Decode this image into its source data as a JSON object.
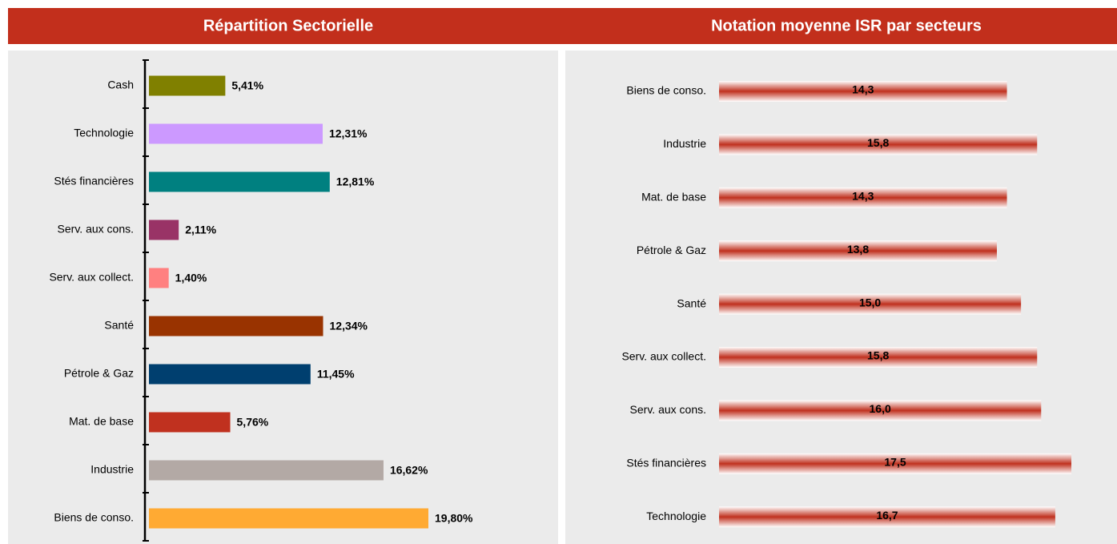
{
  "chart_data": [
    {
      "type": "bar",
      "orientation": "horizontal",
      "title": "Répartition Sectorielle",
      "categories": [
        "Cash",
        "Technologie",
        "Stés financières",
        "Serv. aux cons.",
        "Serv. aux collect.",
        "Santé",
        "Pétrole & Gaz",
        "Mat. de base",
        "Industrie",
        "Biens de conso."
      ],
      "values": [
        5.41,
        12.31,
        12.81,
        2.11,
        1.4,
        12.34,
        11.45,
        5.76,
        16.62,
        19.8
      ],
      "value_labels": [
        "5,41%",
        "12,31%",
        "12,81%",
        "2,11%",
        "1,40%",
        "12,34%",
        "11,45%",
        "5,76%",
        "16,62%",
        "19,80%"
      ],
      "colors": [
        "#808000",
        "#cc99ff",
        "#008080",
        "#993366",
        "#ff8080",
        "#993300",
        "#003f6f",
        "#c0311f",
        "#b3a9a5",
        "#ffaa33"
      ]
    },
    {
      "type": "bar",
      "orientation": "horizontal",
      "title": "Notation moyenne ISR par secteurs",
      "categories": [
        "Biens de conso.",
        "Industrie",
        "Mat. de base",
        "Pétrole & Gaz",
        "Santé",
        "Serv. aux collect.",
        "Serv. aux cons.",
        "Stés financières",
        "Technologie"
      ],
      "values": [
        14.3,
        15.8,
        14.3,
        13.8,
        15.0,
        15.8,
        16.0,
        17.5,
        16.7
      ],
      "value_labels": [
        "14,3",
        "15,8",
        "14,3",
        "13,8",
        "15,0",
        "15,8",
        "16,0",
        "17,5",
        "16,7"
      ],
      "color": "#c0311f"
    }
  ]
}
